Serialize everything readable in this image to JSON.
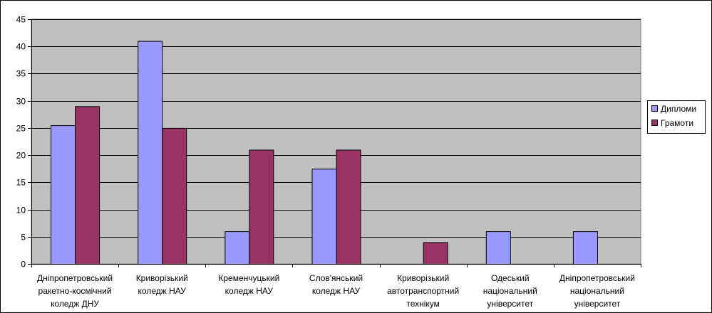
{
  "chart_data": {
    "type": "bar",
    "categories": [
      [
        "Дніпропетровський",
        "ракетно-космічний",
        "коледж ДНУ"
      ],
      [
        "Криворізький",
        "коледж НАУ"
      ],
      [
        "Кременчуцький",
        "коледж НАУ"
      ],
      [
        "Слов'янський",
        "коледж НАУ"
      ],
      [
        "Криворізький",
        "автотранспортний",
        "технікум"
      ],
      [
        "Одеський",
        "національний",
        "університет"
      ],
      [
        "Дніпропетровський",
        "національний",
        "університет"
      ]
    ],
    "series": [
      {
        "name": "Дипломи",
        "color": "#9999ff",
        "values": [
          25.5,
          41,
          6,
          17.5,
          0,
          6,
          6
        ]
      },
      {
        "name": "Грамоти",
        "color": "#993366",
        "values": [
          29,
          25,
          21,
          21,
          4,
          0,
          0
        ]
      }
    ],
    "ylim": [
      0,
      45
    ],
    "yticks": [
      0,
      5,
      10,
      15,
      20,
      25,
      30,
      35,
      40,
      45
    ],
    "grid": true,
    "legend": "right",
    "plot_background": "#c0c0c0"
  }
}
